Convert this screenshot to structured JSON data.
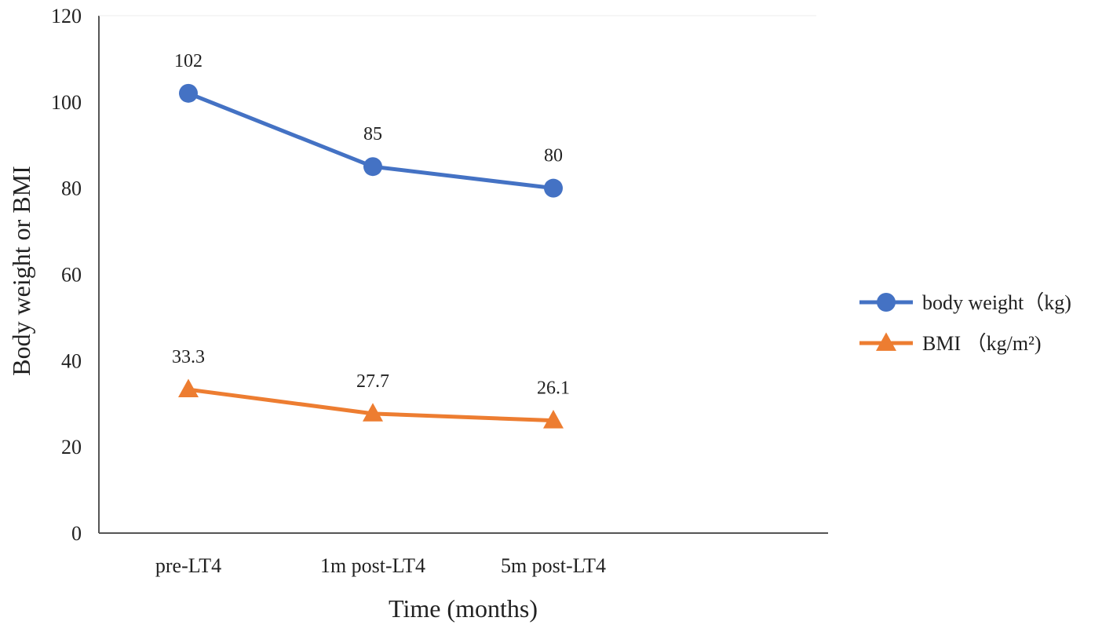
{
  "chart_data": {
    "type": "line",
    "categories": [
      "pre-LT4",
      "1m post-LT4",
      "5m post-LT4"
    ],
    "series": [
      {
        "name": "body weight（kg)",
        "values": [
          102,
          85,
          80
        ],
        "labels": [
          "102",
          "85",
          "80"
        ],
        "color": "#4472C4",
        "marker": "circle"
      },
      {
        "name": "BMI （kg/m²)",
        "values": [
          33.3,
          27.7,
          26.1
        ],
        "labels": [
          "33.3",
          "27.7",
          "26.1"
        ],
        "color": "#ED7D31",
        "marker": "triangle"
      }
    ],
    "xlabel": "Time (months)",
    "ylabel": "Body weight or BMI",
    "ylim": [
      0,
      120
    ],
    "yticks": [
      0,
      20,
      40,
      60,
      80,
      100,
      120
    ],
    "grid": false,
    "legend_position": "right"
  }
}
